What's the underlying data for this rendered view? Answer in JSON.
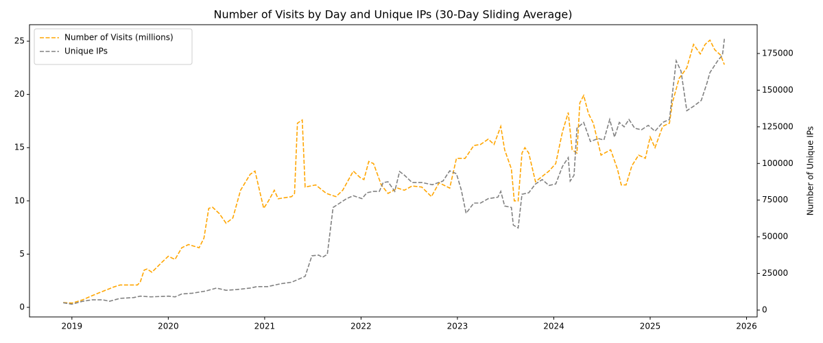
{
  "chart_data": {
    "type": "line",
    "title": "Number of Visits by Day and Unique IPs (30-Day Sliding Average)",
    "y2label": "Number of Unique IPs",
    "xlim": [
      2018.56,
      2026.11
    ],
    "xticks": [
      2019,
      2020,
      2021,
      2022,
      2023,
      2024,
      2025,
      2026
    ],
    "ylim": [
      -0.9,
      26.55
    ],
    "yticks": [
      0,
      5,
      10,
      15,
      20,
      25
    ],
    "y2lim": [
      -4680,
      194650
    ],
    "y2ticks": [
      0,
      25000,
      50000,
      75000,
      100000,
      125000,
      150000,
      175000
    ],
    "legend": "upper left",
    "grid": false,
    "series": [
      {
        "name": "Number of Visits (millions)",
        "color": "#ffa500",
        "x": [
          2018.91,
          2019.0,
          2019.11,
          2019.21,
          2019.32,
          2019.43,
          2019.5,
          2019.68,
          2019.71,
          2019.75,
          2019.78,
          2019.83,
          2019.93,
          2020.0,
          2020.07,
          2020.14,
          2020.21,
          2020.32,
          2020.37,
          2020.42,
          2020.46,
          2020.53,
          2020.6,
          2020.67,
          2020.75,
          2020.85,
          2020.9,
          2020.99,
          2021.04,
          2021.1,
          2021.14,
          2021.28,
          2021.31,
          2021.34,
          2021.39,
          2021.42,
          2021.53,
          2021.64,
          2021.74,
          2021.81,
          2021.92,
          2021.99,
          2022.03,
          2022.08,
          2022.13,
          2022.21,
          2022.28,
          2022.38,
          2022.45,
          2022.53,
          2022.63,
          2022.73,
          2022.81,
          2022.92,
          2022.99,
          2023.08,
          2023.17,
          2023.24,
          2023.32,
          2023.38,
          2023.45,
          2023.49,
          2023.56,
          2023.59,
          2023.63,
          2023.67,
          2023.7,
          2023.74,
          2023.81,
          2023.88,
          2023.95,
          2024.02,
          2024.09,
          2024.15,
          2024.19,
          2024.24,
          2024.27,
          2024.31,
          2024.36,
          2024.41,
          2024.49,
          2024.59,
          2024.66,
          2024.7,
          2024.75,
          2024.81,
          2024.88,
          2024.95,
          2025.0,
          2025.05,
          2025.13,
          2025.2,
          2025.23,
          2025.3,
          2025.38,
          2025.45,
          2025.52,
          2025.57,
          2025.62,
          2025.67,
          2025.73,
          2025.77
        ],
        "values": [
          0.45,
          0.4,
          0.7,
          1.1,
          1.5,
          1.9,
          2.1,
          2.1,
          2.4,
          3.5,
          3.6,
          3.3,
          4.2,
          4.8,
          4.5,
          5.6,
          5.9,
          5.6,
          6.5,
          9.3,
          9.4,
          8.8,
          7.9,
          8.4,
          11,
          12.5,
          12.8,
          9.3,
          10,
          11,
          10.2,
          10.4,
          10.7,
          17.3,
          17.6,
          11.3,
          11.5,
          10.7,
          10.4,
          11,
          12.8,
          12.2,
          12,
          13.7,
          13.5,
          11.5,
          10.7,
          11.2,
          11,
          11.4,
          11.3,
          10.4,
          11.7,
          11.2,
          14,
          14,
          15.2,
          15.3,
          15.8,
          15.3,
          17,
          14.8,
          13,
          10,
          10,
          14.5,
          15,
          14.5,
          11.8,
          12.3,
          12.8,
          13.5,
          16.5,
          18.3,
          14.8,
          14.5,
          19.2,
          19.9,
          18.2,
          17.3,
          14.3,
          14.8,
          13,
          11.5,
          11.5,
          13.3,
          14.3,
          14,
          16,
          15,
          17,
          17.3,
          19.2,
          21.5,
          22.5,
          24.7,
          23.8,
          24.7,
          25.1,
          24.2,
          23.7,
          22.8
        ]
      },
      {
        "name": "Unique IPs",
        "color": "#808080",
        "axis": "y2",
        "x": [
          2018.91,
          2019.0,
          2019.11,
          2019.21,
          2019.32,
          2019.39,
          2019.5,
          2019.64,
          2019.71,
          2019.82,
          2020.0,
          2020.07,
          2020.14,
          2020.25,
          2020.39,
          2020.5,
          2020.6,
          2020.71,
          2020.85,
          2020.92,
          2021.03,
          2021.1,
          2021.17,
          2021.28,
          2021.35,
          2021.42,
          2021.49,
          2021.56,
          2021.6,
          2021.65,
          2021.71,
          2021.78,
          2021.85,
          2021.92,
          2022.01,
          2022.06,
          2022.13,
          2022.19,
          2022.23,
          2022.28,
          2022.35,
          2022.4,
          2022.45,
          2022.53,
          2022.63,
          2022.74,
          2022.85,
          2022.92,
          2022.99,
          2023.04,
          2023.09,
          2023.17,
          2023.24,
          2023.32,
          2023.42,
          2023.45,
          2023.49,
          2023.56,
          2023.58,
          2023.63,
          2023.67,
          2023.74,
          2023.81,
          2023.88,
          2023.95,
          2024.02,
          2024.09,
          2024.15,
          2024.17,
          2024.21,
          2024.24,
          2024.31,
          2024.38,
          2024.46,
          2024.52,
          2024.58,
          2024.63,
          2024.68,
          2024.73,
          2024.78,
          2024.84,
          2024.91,
          2024.98,
          2025.05,
          2025.13,
          2025.2,
          2025.27,
          2025.32,
          2025.38,
          2025.45,
          2025.53,
          2025.59,
          2025.62,
          2025.7,
          2025.75,
          2025.77
        ],
        "values": [
          5000,
          4000,
          6000,
          7000,
          7000,
          6000,
          8000,
          8500,
          9500,
          9000,
          9500,
          9000,
          11000,
          11500,
          13000,
          15000,
          13500,
          14000,
          15000,
          16000,
          16000,
          17000,
          18000,
          19000,
          21000,
          23000,
          37000,
          37500,
          36000,
          38000,
          70000,
          73000,
          76000,
          78000,
          76000,
          80000,
          81000,
          81000,
          87000,
          87500,
          81000,
          94500,
          92000,
          87000,
          87000,
          85500,
          88000,
          95000,
          93000,
          82000,
          66000,
          73000,
          73000,
          76000,
          77000,
          81000,
          71000,
          70000,
          58000,
          56000,
          79000,
          80000,
          86000,
          89000,
          85000,
          86000,
          98000,
          104000,
          88000,
          92000,
          124000,
          128000,
          115000,
          117000,
          116000,
          130000,
          118000,
          128000,
          125000,
          130000,
          124000,
          123000,
          126000,
          122000,
          128000,
          130000,
          170000,
          163000,
          136000,
          139000,
          143000,
          155000,
          162000,
          170000,
          174000,
          185000
        ]
      }
    ]
  }
}
